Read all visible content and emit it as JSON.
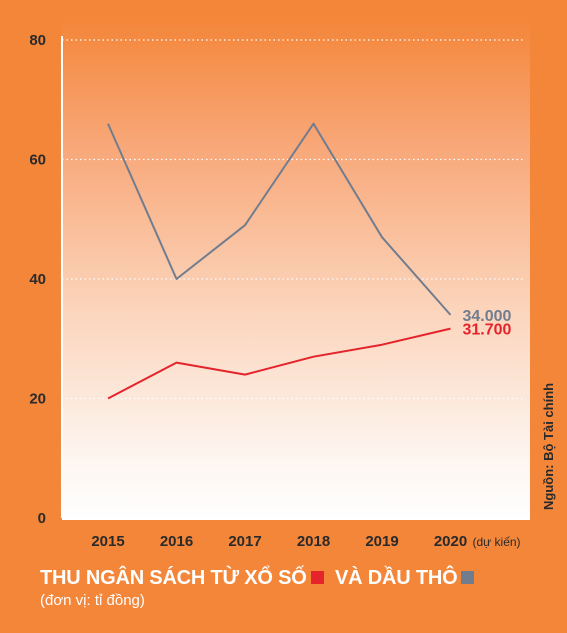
{
  "chart_data": {
    "type": "line",
    "title": "THU NGÂN SÁCH TỪ XỔ SỐ",
    "title_part2": "VÀ DẦU THÔ",
    "subtitle": "(đơn vị: tỉ đồng)",
    "source": "Nguồn: Bộ Tài chính",
    "categories": [
      "2015",
      "2016",
      "2017",
      "2018",
      "2019",
      "2020"
    ],
    "x_note": "(dự kiến)",
    "ylim": [
      0,
      80
    ],
    "yticks": [
      "0",
      "20",
      "40",
      "60",
      "80"
    ],
    "grid": true,
    "series": [
      {
        "key": "oil",
        "color": "#717d8f",
        "values": [
          66,
          40,
          49,
          66,
          47,
          34
        ],
        "end_label": "34.000"
      },
      {
        "key": "lottery",
        "color": "#e4232b",
        "values": [
          20,
          26,
          24,
          27,
          29,
          31.7
        ],
        "end_label": "31.700"
      }
    ],
    "colors": {
      "background": "#f4863a",
      "lottery": "#e4232b",
      "oil": "#717d8f"
    }
  }
}
